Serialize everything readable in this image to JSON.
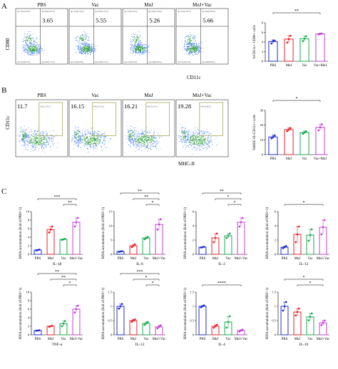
{
  "colors": {
    "PBS": "#1f2fd6",
    "MnJ": "#e8232a",
    "Vac": "#1aa84f",
    "MnJ+Vac": "#c53fd6",
    "dot_dense": "#2a9a3a",
    "dot_mid": "#2a6ef0",
    "dot_sparse": "#6a8fe8"
  },
  "panel_letters": [
    "A",
    "B",
    "C"
  ],
  "panelA": {
    "y_marker": "CD80",
    "x_marker": "CD11c",
    "plots": [
      {
        "group": "PBS",
        "value": "3.65",
        "gates": [
          "Q1-UL(0.28%)",
          "Q2-UR(3.65%)",
          "Q3-LL(88.5%)",
          "Q4-LR(7.57%)"
        ]
      },
      {
        "group": "Vac",
        "value": "5.55",
        "gates": [
          "Q1-UL(0.34%)",
          "Q2-UR(5.55%)",
          "Q3-LL(84.8%)",
          "Q4-LR(9.31%)"
        ]
      },
      {
        "group": "MnJ",
        "value": "5.26",
        "gates": [
          "Q1-UL(0.32%)",
          "Q2-UR(5.26%)",
          "Q3-LL(85.6%)",
          "Q4-LR(8.82%)"
        ]
      },
      {
        "group": "MnJ+Vac",
        "value": "5.66",
        "gates": [
          "Q1-UL(0.30%)",
          "Q2-UR(5.66%)",
          "Q3-LL(85.2%)",
          "Q4-LR(8.84%)"
        ]
      }
    ]
  },
  "panelB": {
    "y_marker": "CD11c",
    "x_marker": "MHC-II",
    "plots": [
      {
        "group": "PBS",
        "value": "11.7",
        "gate": "P4(11.70%)"
      },
      {
        "group": "Vac",
        "value": "16.15",
        "gate": "P4(16.15%)"
      },
      {
        "group": "MnJ",
        "value": "16.21",
        "gate": "P4(16.21%)"
      },
      {
        "group": "MnJ+Vac",
        "value": "19.28",
        "gate": "P4(19.28%)"
      }
    ]
  },
  "chart_data": [
    {
      "type": "bar",
      "id": "A-bar",
      "ylabel": "%CD11c+ CD80+ cells",
      "categories": [
        "PBS",
        "MnJ",
        "Vac",
        "Vac+MnJ"
      ],
      "values": [
        4.1,
        4.6,
        4.7,
        5.7
      ],
      "errors": [
        0.35,
        0.75,
        0.55,
        0.15
      ],
      "points": [
        [
          3.7,
          4.2,
          4.3
        ],
        [
          3.9,
          4.6,
          5.3
        ],
        [
          4.2,
          4.7,
          5.2
        ],
        [
          5.6,
          5.7,
          5.75
        ]
      ],
      "ylim": [
        0,
        8
      ],
      "yticks": [
        0,
        2,
        4,
        6,
        8
      ],
      "significance": [
        {
          "from": 0,
          "to": 3,
          "label": "**"
        }
      ]
    },
    {
      "type": "bar",
      "id": "B-bar",
      "ylabel": "%MHC-II+CD11c+ cells",
      "categories": [
        "PBS",
        "MnJ",
        "Vac",
        "Vac+MnJ"
      ],
      "values": [
        12.0,
        17.0,
        15.0,
        18.5
      ],
      "errors": [
        1.2,
        1.2,
        1.0,
        2.0
      ],
      "points": [
        [
          11,
          12,
          13
        ],
        [
          16,
          17,
          18
        ],
        [
          14.2,
          15,
          15.8
        ],
        [
          16.5,
          18.5,
          20.5
        ]
      ],
      "ylim": [
        0,
        30
      ],
      "yticks": [
        0,
        10,
        20,
        30
      ],
      "significance": [
        {
          "from": 0,
          "to": 3,
          "label": "*"
        }
      ]
    },
    {
      "type": "bar",
      "id": "IL-1b",
      "gene": "IL-1β",
      "ylabel": "RNA accumulation (fold of PBS=1)",
      "categories": [
        "PBS",
        "MnJ",
        "Vac",
        "MnJ+Vac"
      ],
      "values": [
        1.0,
        5.8,
        3.5,
        7.5
      ],
      "errors": [
        0.1,
        0.7,
        0.1,
        1.0
      ],
      "points": [
        [
          0.9,
          1.0,
          1.1
        ],
        [
          5.1,
          5.8,
          6.5
        ],
        [
          3.4,
          3.5,
          3.6
        ],
        [
          6.5,
          7.5,
          8.5
        ]
      ],
      "ylim": [
        0,
        10
      ],
      "yticks": [
        0,
        2,
        4,
        6,
        8,
        10
      ],
      "significance": [
        {
          "from": 0,
          "to": 3,
          "label": "***"
        },
        {
          "from": 2,
          "to": 3,
          "label": "**"
        }
      ]
    },
    {
      "type": "bar",
      "id": "IL-6",
      "gene": "IL-6",
      "ylabel": "RNA accumulation (fold of PBS=1)",
      "categories": [
        "PBS",
        "MnJ",
        "Vac",
        "MnJ+Vac"
      ],
      "values": [
        1.0,
        3.0,
        5.7,
        10.5
      ],
      "errors": [
        0.1,
        0.5,
        0.4,
        1.8
      ],
      "points": [
        [
          0.9,
          1.0,
          1.1
        ],
        [
          2.5,
          3.0,
          3.5
        ],
        [
          5.3,
          5.7,
          6.1
        ],
        [
          8.7,
          10.5,
          12.3
        ]
      ],
      "ylim": [
        0,
        15
      ],
      "yticks": [
        0,
        5,
        10,
        15
      ],
      "significance": [
        {
          "from": 0,
          "to": 3,
          "label": "**"
        },
        {
          "from": 1,
          "to": 3,
          "label": "**"
        },
        {
          "from": 2,
          "to": 3,
          "label": "*"
        }
      ]
    },
    {
      "type": "bar",
      "id": "IL-2",
      "gene": "IL-2",
      "ylabel": "RNA accumulation (fold of PBS=1)",
      "categories": [
        "PBS",
        "MnJ",
        "Vac",
        "MnJ+Vac"
      ],
      "values": [
        1.0,
        2.3,
        2.6,
        4.5
      ],
      "errors": [
        0.05,
        0.6,
        0.3,
        0.6
      ],
      "points": [
        [
          0.95,
          1.0,
          1.05
        ],
        [
          1.7,
          2.3,
          2.9
        ],
        [
          2.3,
          2.6,
          2.9
        ],
        [
          3.9,
          4.5,
          5.1
        ]
      ],
      "ylim": [
        0,
        6
      ],
      "yticks": [
        0,
        2,
        4,
        6
      ],
      "significance": [
        {
          "from": 0,
          "to": 3,
          "label": "**"
        },
        {
          "from": 1,
          "to": 3,
          "label": "*"
        },
        {
          "from": 2,
          "to": 3,
          "label": "*"
        }
      ]
    },
    {
      "type": "bar",
      "id": "IL-12",
      "gene": "IL-12",
      "ylabel": "RNA accumulation (fold of PBS=1)",
      "categories": [
        "PBS",
        "MnJ",
        "Vac",
        "MnJ+Vac"
      ],
      "values": [
        1.0,
        2.8,
        2.7,
        3.8
      ],
      "errors": [
        0.15,
        1.1,
        0.8,
        1.0
      ],
      "points": [
        [
          0.85,
          1.0,
          1.15
        ],
        [
          1.7,
          2.8,
          3.9
        ],
        [
          1.9,
          2.7,
          3.5
        ],
        [
          2.8,
          3.8,
          4.8
        ]
      ],
      "ylim": [
        0,
        6
      ],
      "yticks": [
        0,
        2,
        4,
        6
      ],
      "significance": [
        {
          "from": 0,
          "to": 3,
          "label": "*"
        }
      ]
    },
    {
      "type": "bar",
      "id": "TNF-a",
      "gene": "TNF-α",
      "ylabel": "RNA accumulation (fold of PBS=1)",
      "categories": [
        "PBS",
        "MnJ",
        "Vac",
        "MnJ+Vac"
      ],
      "values": [
        1.0,
        2.0,
        2.6,
        6.0
      ],
      "errors": [
        0.05,
        0.1,
        0.6,
        0.8
      ],
      "points": [
        [
          0.95,
          1.0,
          1.05
        ],
        [
          1.9,
          2.0,
          2.1
        ],
        [
          2.0,
          2.6,
          3.2
        ],
        [
          5.2,
          6.0,
          6.8
        ]
      ],
      "ylim": [
        0,
        10
      ],
      "yticks": [
        0,
        2,
        4,
        6,
        8,
        10
      ],
      "significance": [
        {
          "from": 0,
          "to": 3,
          "label": "**"
        },
        {
          "from": 1,
          "to": 3,
          "label": "**"
        },
        {
          "from": 2,
          "to": 3,
          "label": "*"
        }
      ]
    },
    {
      "type": "bar",
      "id": "IL-13",
      "gene": "IL-13",
      "ylabel": "RNA accumulation (fold of PBS=1)",
      "categories": [
        "PBS",
        "MnJ",
        "Vac",
        "MnJ+Vac"
      ],
      "values": [
        1.0,
        0.5,
        0.4,
        0.28
      ],
      "errors": [
        0.08,
        0.04,
        0.05,
        0.05
      ],
      "points": [
        [
          0.92,
          1.0,
          1.08
        ],
        [
          0.46,
          0.5,
          0.54
        ],
        [
          0.35,
          0.4,
          0.45
        ],
        [
          0.23,
          0.28,
          0.33
        ]
      ],
      "ylim": [
        0,
        1.5
      ],
      "yticks": [
        0,
        0.5,
        1.0,
        1.5
      ],
      "significance": [
        {
          "from": 0,
          "to": 3,
          "label": "***"
        },
        {
          "from": 1,
          "to": 3,
          "label": "*"
        },
        {
          "from": 2,
          "to": 3,
          "label": "*"
        }
      ]
    },
    {
      "type": "bar",
      "id": "IL-4",
      "gene": "IL-4",
      "ylabel": "RNA accumulation (fold of PBS=1)",
      "categories": [
        "PBS",
        "MnJ",
        "Vac",
        "MnJ+Vac"
      ],
      "values": [
        1.0,
        0.3,
        0.45,
        0.15
      ],
      "errors": [
        0.03,
        0.05,
        0.2,
        0.03
      ],
      "points": [
        [
          0.97,
          1.0,
          1.03
        ],
        [
          0.25,
          0.3,
          0.35
        ],
        [
          0.25,
          0.45,
          0.65
        ],
        [
          0.12,
          0.15,
          0.18
        ]
      ],
      "ylim": [
        0,
        1.5
      ],
      "yticks": [
        0,
        0.5,
        1.0,
        1.5
      ],
      "significance": [
        {
          "from": 0,
          "to": 3,
          "label": "****"
        }
      ]
    },
    {
      "type": "bar",
      "id": "IL-10",
      "gene": "IL-10",
      "ylabel": "RNA accumulation (fold of PBS=1)",
      "categories": [
        "PBS",
        "MnJ",
        "Vac",
        "MnJ+Vac"
      ],
      "values": [
        1.0,
        0.8,
        0.63,
        0.42
      ],
      "errors": [
        0.15,
        0.12,
        0.12,
        0.08
      ],
      "points": [
        [
          0.85,
          1.0,
          1.15
        ],
        [
          0.68,
          0.8,
          0.92
        ],
        [
          0.51,
          0.63,
          0.75
        ],
        [
          0.34,
          0.42,
          0.5
        ]
      ],
      "ylim": [
        0,
        1.5
      ],
      "yticks": [
        0,
        0.5,
        1.0,
        1.5
      ],
      "significance": [
        {
          "from": 0,
          "to": 3,
          "label": "*"
        },
        {
          "from": 1,
          "to": 3,
          "label": "*"
        }
      ]
    }
  ]
}
